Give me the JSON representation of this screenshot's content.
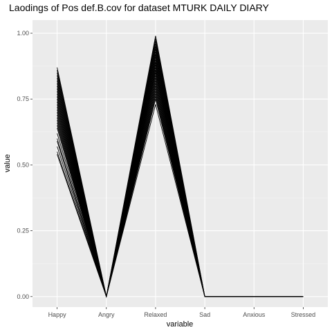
{
  "chart_data": {
    "type": "line",
    "title": "Laodings of Pos def.B.cov for dataset MTURK DAILY DIARY",
    "xlabel": "variable",
    "ylabel": "value",
    "categories": [
      "Happy",
      "Angry",
      "Relaxed",
      "Sad",
      "Anxious",
      "Stressed"
    ],
    "ylim": [
      -0.04,
      1.05
    ],
    "yticks": [
      "0.00",
      "0.25",
      "0.50",
      "0.75",
      "1.00"
    ],
    "ytick_values": [
      0,
      0.25,
      0.5,
      0.75,
      1.0
    ],
    "grid": true,
    "legend": "none",
    "colors": {
      "panel": "#ebebeb",
      "grid_major": "#ffffff",
      "grid_minor": "#f5f5f5",
      "line": "#000000"
    },
    "series_note_count": 30,
    "series": [
      {
        "values": [
          0.87,
          0.0,
          0.99,
          0.0,
          0.0,
          0.0
        ]
      },
      {
        "values": [
          0.86,
          0.0,
          0.98,
          0.0,
          0.0,
          0.0
        ]
      },
      {
        "values": [
          0.85,
          0.0,
          0.97,
          0.0,
          0.0,
          0.0
        ]
      },
      {
        "values": [
          0.84,
          0.0,
          0.96,
          0.0,
          0.0,
          0.0
        ]
      },
      {
        "values": [
          0.83,
          0.0,
          0.95,
          0.0,
          0.0,
          0.0
        ]
      },
      {
        "values": [
          0.82,
          0.0,
          0.95,
          0.0,
          0.0,
          0.0
        ]
      },
      {
        "values": [
          0.81,
          0.0,
          0.94,
          0.0,
          0.0,
          0.0
        ]
      },
      {
        "values": [
          0.8,
          0.0,
          0.93,
          0.0,
          0.0,
          0.0
        ]
      },
      {
        "values": [
          0.79,
          0.0,
          0.92,
          0.0,
          0.0,
          0.0
        ]
      },
      {
        "values": [
          0.78,
          0.0,
          0.92,
          0.0,
          0.0,
          0.0
        ]
      },
      {
        "values": [
          0.77,
          0.0,
          0.91,
          0.0,
          0.0,
          0.0
        ]
      },
      {
        "values": [
          0.76,
          0.0,
          0.9,
          0.0,
          0.0,
          0.0
        ]
      },
      {
        "values": [
          0.75,
          0.0,
          0.89,
          0.0,
          0.0,
          0.0
        ]
      },
      {
        "values": [
          0.74,
          0.0,
          0.89,
          0.0,
          0.0,
          0.0
        ]
      },
      {
        "values": [
          0.73,
          0.0,
          0.88,
          0.0,
          0.0,
          0.0
        ]
      },
      {
        "values": [
          0.72,
          0.0,
          0.87,
          0.0,
          0.0,
          0.0
        ]
      },
      {
        "values": [
          0.71,
          0.0,
          0.86,
          0.0,
          0.0,
          0.0
        ]
      },
      {
        "values": [
          0.7,
          0.0,
          0.86,
          0.0,
          0.0,
          0.0
        ]
      },
      {
        "values": [
          0.69,
          0.0,
          0.85,
          0.0,
          0.0,
          0.0
        ]
      },
      {
        "values": [
          0.68,
          0.0,
          0.84,
          0.0,
          0.0,
          0.0
        ]
      },
      {
        "values": [
          0.67,
          0.0,
          0.83,
          0.0,
          0.0,
          0.0
        ]
      },
      {
        "values": [
          0.66,
          0.0,
          0.82,
          0.0,
          0.0,
          0.0
        ]
      },
      {
        "values": [
          0.65,
          0.0,
          0.81,
          0.0,
          0.0,
          0.0
        ]
      },
      {
        "values": [
          0.64,
          0.0,
          0.8,
          0.0,
          0.0,
          0.0
        ]
      },
      {
        "values": [
          0.62,
          0.0,
          0.79,
          0.0,
          0.0,
          0.0
        ]
      },
      {
        "values": [
          0.6,
          0.0,
          0.78,
          0.0,
          0.0,
          0.0
        ]
      },
      {
        "values": [
          0.59,
          0.0,
          0.77,
          0.0,
          0.0,
          0.0
        ]
      },
      {
        "values": [
          0.57,
          0.0,
          0.76,
          0.0,
          0.0,
          0.0
        ]
      },
      {
        "values": [
          0.55,
          0.0,
          0.75,
          0.0,
          0.0,
          0.0
        ]
      },
      {
        "values": [
          0.54,
          0.0,
          0.73,
          0.0,
          0.0,
          0.0
        ]
      }
    ]
  }
}
